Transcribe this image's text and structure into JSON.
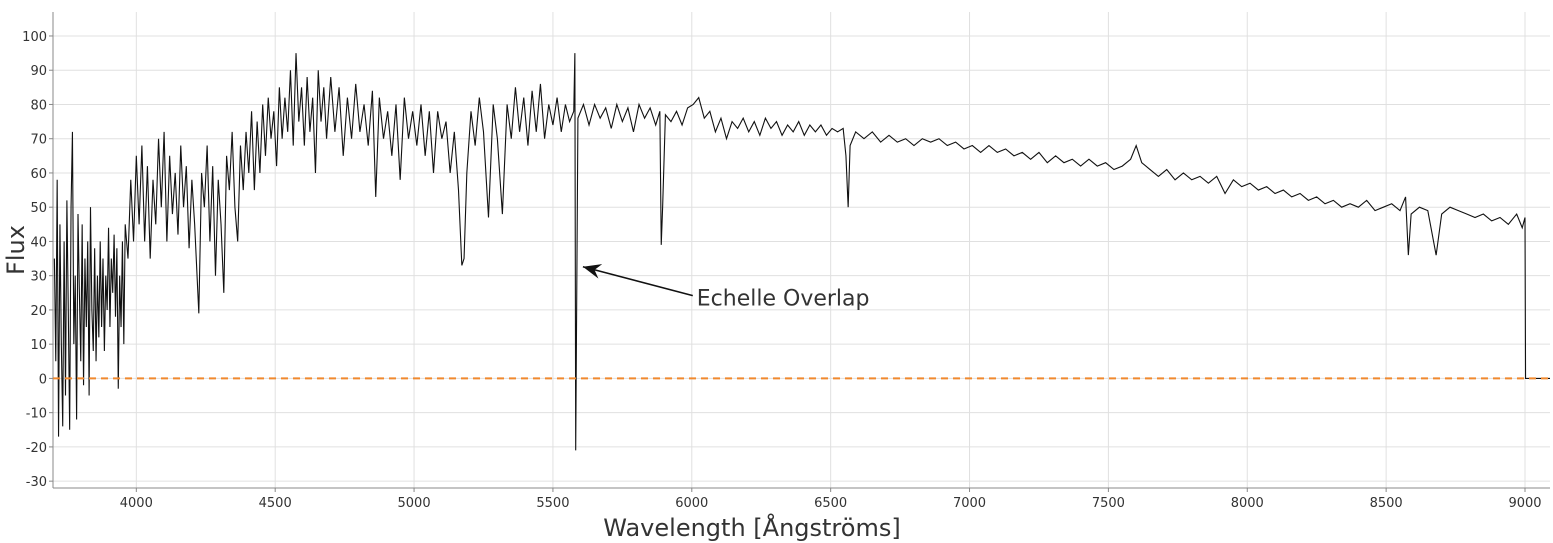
{
  "chart_data": {
    "type": "line",
    "xlabel": "Wavelength [Ångströms]",
    "ylabel": "Flux",
    "xlim": [
      3700,
      9090
    ],
    "ylim": [
      -32,
      107
    ],
    "xticks": [
      4000,
      4500,
      5000,
      5500,
      6000,
      6500,
      7000,
      7500,
      8000,
      8500,
      9000
    ],
    "yticks": [
      -30,
      -20,
      -10,
      0,
      10,
      20,
      30,
      40,
      50,
      60,
      70,
      80,
      90,
      100
    ],
    "grid": true,
    "annotations": [
      {
        "text": "Echelle Overlap",
        "x": 5608,
        "y": 32.6,
        "text_x": 6018,
        "text_y": 23.6
      }
    ],
    "series": [
      {
        "color": "#111111",
        "x": [
          3705,
          3710,
          3715,
          3720,
          3725,
          3730,
          3735,
          3740,
          3745,
          3750,
          3755,
          3760,
          3765,
          3770,
          3775,
          3780,
          3785,
          3790,
          3795,
          3800,
          3805,
          3810,
          3815,
          3820,
          3825,
          3830,
          3835,
          3840,
          3845,
          3850,
          3855,
          3860,
          3865,
          3870,
          3875,
          3880,
          3885,
          3890,
          3895,
          3900,
          3905,
          3910,
          3915,
          3920,
          3925,
          3930,
          3935,
          3940,
          3945,
          3950,
          3955,
          3960,
          3970,
          3980,
          3990,
          4000,
          4010,
          4020,
          4030,
          4040,
          4050,
          4060,
          4070,
          4080,
          4090,
          4100,
          4110,
          4120,
          4130,
          4140,
          4150,
          4160,
          4170,
          4180,
          4190,
          4200,
          4210,
          4225,
          4235,
          4245,
          4255,
          4265,
          4275,
          4285,
          4295,
          4305,
          4315,
          4325,
          4335,
          4345,
          4355,
          4365,
          4375,
          4385,
          4395,
          4405,
          4415,
          4425,
          4435,
          4445,
          4455,
          4465,
          4475,
          4485,
          4495,
          4505,
          4515,
          4525,
          4535,
          4545,
          4555,
          4565,
          4575,
          4585,
          4595,
          4605,
          4615,
          4625,
          4635,
          4645,
          4655,
          4665,
          4675,
          4685,
          4700,
          4715,
          4730,
          4745,
          4760,
          4775,
          4790,
          4805,
          4820,
          4835,
          4850,
          4862,
          4875,
          4890,
          4905,
          4920,
          4935,
          4950,
          4965,
          4980,
          4995,
          5010,
          5025,
          5040,
          5055,
          5070,
          5085,
          5100,
          5115,
          5130,
          5145,
          5160,
          5172,
          5180,
          5190,
          5205,
          5220,
          5235,
          5250,
          5268,
          5285,
          5300,
          5318,
          5335,
          5350,
          5365,
          5380,
          5395,
          5410,
          5425,
          5440,
          5455,
          5470,
          5485,
          5500,
          5515,
          5530,
          5545,
          5560,
          5575,
          5579,
          5582,
          5590,
          5610,
          5630,
          5650,
          5670,
          5690,
          5710,
          5730,
          5750,
          5770,
          5790,
          5810,
          5830,
          5850,
          5870,
          5885,
          5890,
          5895,
          5905,
          5925,
          5945,
          5965,
          5985,
          6005,
          6025,
          6045,
          6065,
          6085,
          6105,
          6125,
          6145,
          6165,
          6185,
          6205,
          6225,
          6245,
          6265,
          6285,
          6305,
          6325,
          6345,
          6365,
          6385,
          6405,
          6425,
          6445,
          6465,
          6485,
          6505,
          6525,
          6545,
          6555,
          6563,
          6570,
          6590,
          6620,
          6650,
          6680,
          6710,
          6740,
          6770,
          6800,
          6830,
          6860,
          6890,
          6920,
          6950,
          6980,
          7010,
          7040,
          7070,
          7100,
          7130,
          7160,
          7190,
          7220,
          7250,
          7280,
          7310,
          7340,
          7370,
          7400,
          7430,
          7460,
          7490,
          7520,
          7550,
          7580,
          7600,
          7620,
          7650,
          7680,
          7710,
          7740,
          7770,
          7800,
          7830,
          7860,
          7890,
          7920,
          7950,
          7980,
          8010,
          8040,
          8070,
          8100,
          8130,
          8160,
          8190,
          8220,
          8250,
          8280,
          8310,
          8340,
          8370,
          8400,
          8430,
          8460,
          8490,
          8520,
          8550,
          8570,
          8580,
          8590,
          8620,
          8650,
          8680,
          8700,
          8730,
          8760,
          8790,
          8820,
          8850,
          8880,
          8910,
          8940,
          8970,
          8990,
          9000,
          9002,
          9090
        ],
        "values": [
          35,
          5,
          58,
          -17,
          45,
          10,
          -14,
          40,
          -5,
          52,
          20,
          -15,
          50,
          72,
          10,
          30,
          -12,
          48,
          25,
          5,
          45,
          -2,
          35,
          15,
          40,
          -5,
          50,
          20,
          8,
          38,
          5,
          30,
          12,
          40,
          15,
          35,
          8,
          30,
          20,
          44,
          15,
          35,
          25,
          42,
          18,
          38,
          -3,
          30,
          15,
          40,
          10,
          45,
          35,
          58,
          40,
          65,
          45,
          68,
          40,
          62,
          35,
          58,
          45,
          70,
          50,
          72,
          40,
          65,
          48,
          60,
          42,
          68,
          50,
          62,
          38,
          58,
          45,
          19,
          60,
          50,
          68,
          40,
          62,
          30,
          58,
          45,
          25,
          65,
          55,
          72,
          50,
          40,
          68,
          55,
          72,
          60,
          78,
          55,
          75,
          60,
          80,
          65,
          82,
          70,
          78,
          62,
          85,
          70,
          82,
          72,
          90,
          68,
          95,
          75,
          85,
          68,
          88,
          72,
          82,
          60,
          90,
          75,
          85,
          70,
          88,
          72,
          85,
          65,
          82,
          70,
          86,
          72,
          80,
          68,
          84,
          53,
          82,
          70,
          78,
          65,
          80,
          58,
          82,
          70,
          78,
          68,
          80,
          65,
          78,
          60,
          78,
          70,
          75,
          60,
          72,
          55,
          33,
          35,
          60,
          78,
          68,
          82,
          72,
          47,
          80,
          70,
          48,
          80,
          70,
          85,
          72,
          82,
          68,
          84,
          72,
          86,
          70,
          80,
          74,
          82,
          72,
          80,
          75,
          78,
          95,
          -21,
          76,
          80,
          74,
          80,
          76,
          79,
          73,
          80,
          75,
          79,
          72,
          80,
          76,
          79,
          74,
          78,
          39,
          50,
          77,
          75,
          78,
          74,
          79,
          80,
          82,
          76,
          78,
          72,
          76,
          70,
          75,
          73,
          76,
          72,
          75,
          71,
          76,
          73,
          75,
          71,
          74,
          72,
          75,
          71,
          74,
          72,
          74,
          71,
          73,
          72,
          73,
          65,
          50,
          68,
          72,
          70,
          72,
          69,
          71,
          69,
          70,
          68,
          70,
          69,
          70,
          68,
          69,
          67,
          68,
          66,
          68,
          66,
          67,
          65,
          66,
          64,
          66,
          63,
          65,
          63,
          64,
          62,
          64,
          62,
          63,
          61,
          62,
          64,
          68,
          63,
          61,
          59,
          61,
          58,
          60,
          58,
          59,
          57,
          59,
          54,
          58,
          56,
          57,
          55,
          56,
          54,
          55,
          53,
          54,
          52,
          53,
          51,
          52,
          50,
          51,
          50,
          52,
          49,
          50,
          51,
          49,
          53,
          36,
          48,
          50,
          49,
          36,
          48,
          50,
          49,
          48,
          47,
          48,
          46,
          47,
          45,
          48,
          44,
          47,
          0,
          0
        ]
      },
      {
        "color": "#f0892e",
        "dash": true,
        "x": [
          3700,
          9090
        ],
        "values": [
          0,
          0
        ]
      }
    ]
  }
}
